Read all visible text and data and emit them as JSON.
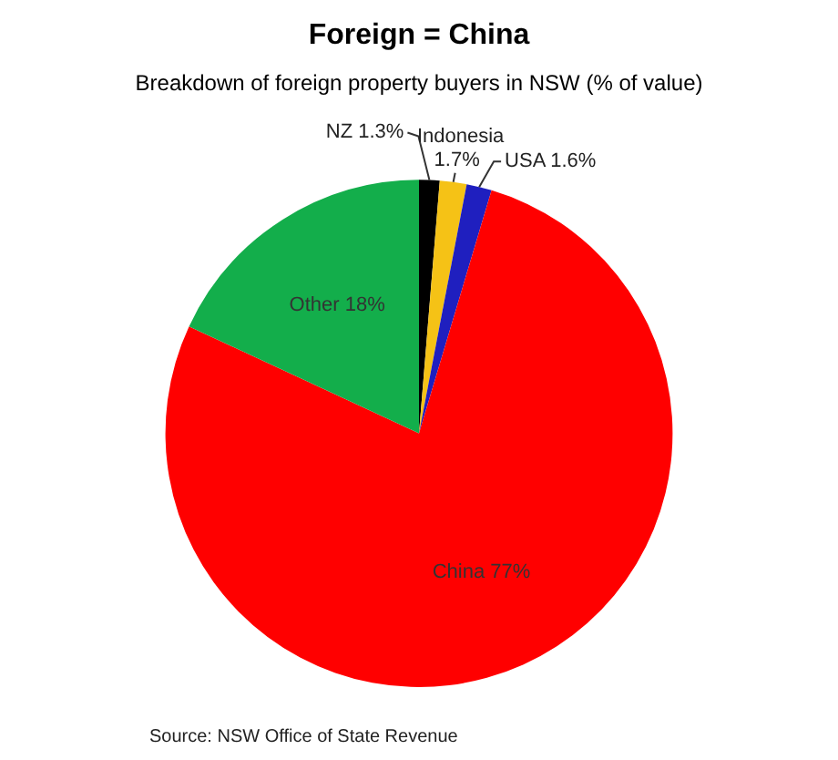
{
  "chart_data": {
    "type": "pie",
    "title": "Foreign = China",
    "subtitle": "Breakdown of foreign property buyers in NSW (% of value)",
    "categories": [
      "NZ",
      "Indonesia",
      "USA",
      "China",
      "Other"
    ],
    "values": [
      1.3,
      1.7,
      1.6,
      77,
      18
    ],
    "value_labels": [
      "1.3%",
      "1.7%",
      "1.6%",
      "77%",
      "18%"
    ],
    "colors": [
      "#000000",
      "#f5c216",
      "#1f1fbf",
      "#ff0000",
      "#13ae4b"
    ],
    "legend": false,
    "annotations": [
      "Source: NSW Office of State Revenue"
    ]
  }
}
